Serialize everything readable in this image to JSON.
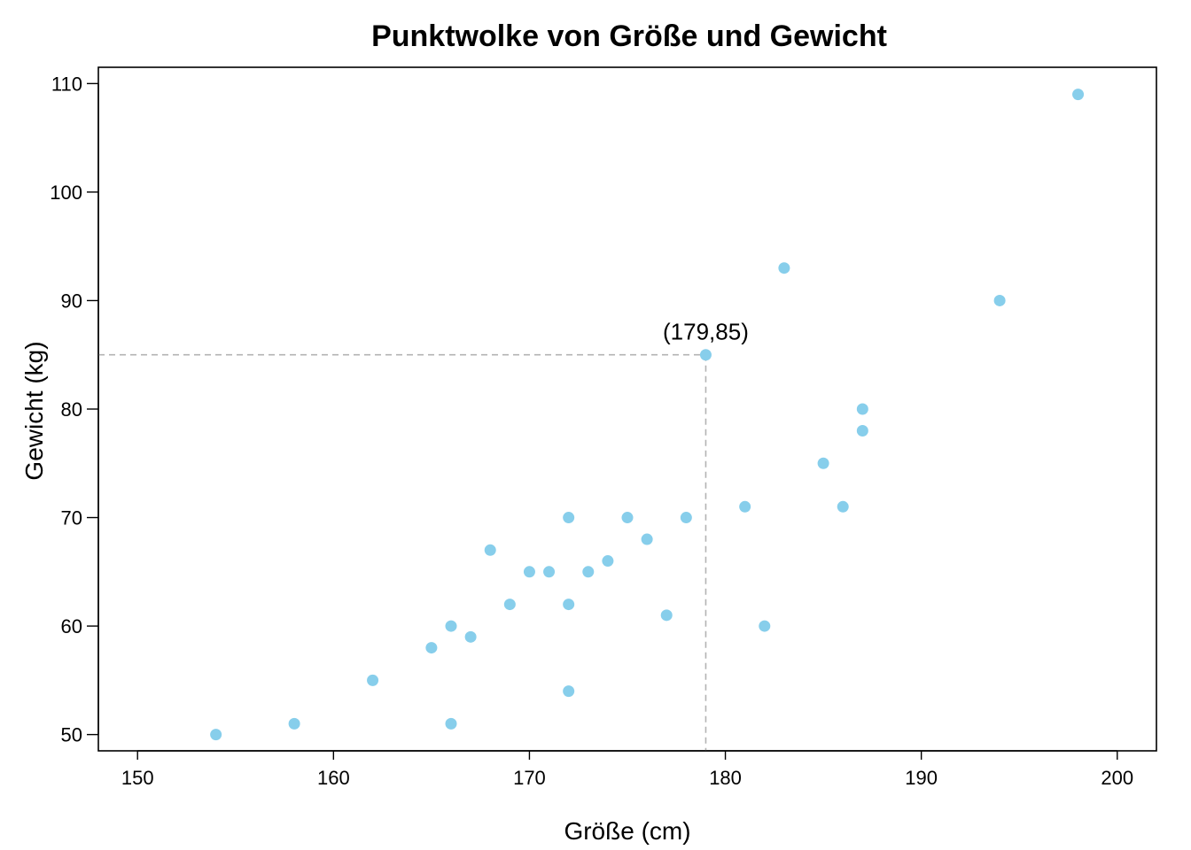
{
  "chart_data": {
    "type": "scatter",
    "title": "Punktwolke von Größe und Gewicht",
    "xlabel": "Größe (cm)",
    "ylabel": "Gewicht (kg)",
    "xlim": [
      148,
      202
    ],
    "ylim": [
      48.5,
      111.5
    ],
    "xticks": [
      150,
      160,
      170,
      180,
      190,
      200
    ],
    "yticks": [
      50,
      60,
      70,
      80,
      90,
      100,
      110
    ],
    "grid": false,
    "point_color": "#87CEEB",
    "guide_color": "#b3b3b3",
    "points": [
      {
        "x": 154,
        "y": 50
      },
      {
        "x": 158,
        "y": 51
      },
      {
        "x": 162,
        "y": 55
      },
      {
        "x": 165,
        "y": 58
      },
      {
        "x": 166,
        "y": 60
      },
      {
        "x": 166,
        "y": 51
      },
      {
        "x": 167,
        "y": 59
      },
      {
        "x": 168,
        "y": 67
      },
      {
        "x": 169,
        "y": 62
      },
      {
        "x": 170,
        "y": 65
      },
      {
        "x": 171,
        "y": 65
      },
      {
        "x": 172,
        "y": 70
      },
      {
        "x": 172,
        "y": 62
      },
      {
        "x": 172,
        "y": 54
      },
      {
        "x": 173,
        "y": 65
      },
      {
        "x": 174,
        "y": 66
      },
      {
        "x": 175,
        "y": 70
      },
      {
        "x": 176,
        "y": 68
      },
      {
        "x": 177,
        "y": 61
      },
      {
        "x": 178,
        "y": 70
      },
      {
        "x": 179,
        "y": 85
      },
      {
        "x": 181,
        "y": 71
      },
      {
        "x": 182,
        "y": 60
      },
      {
        "x": 183,
        "y": 93
      },
      {
        "x": 185,
        "y": 75
      },
      {
        "x": 186,
        "y": 71
      },
      {
        "x": 187,
        "y": 80
      },
      {
        "x": 187,
        "y": 78
      },
      {
        "x": 194,
        "y": 90
      },
      {
        "x": 198,
        "y": 109
      }
    ],
    "highlight": {
      "x": 179,
      "y": 85,
      "label": "(179,85)"
    }
  }
}
